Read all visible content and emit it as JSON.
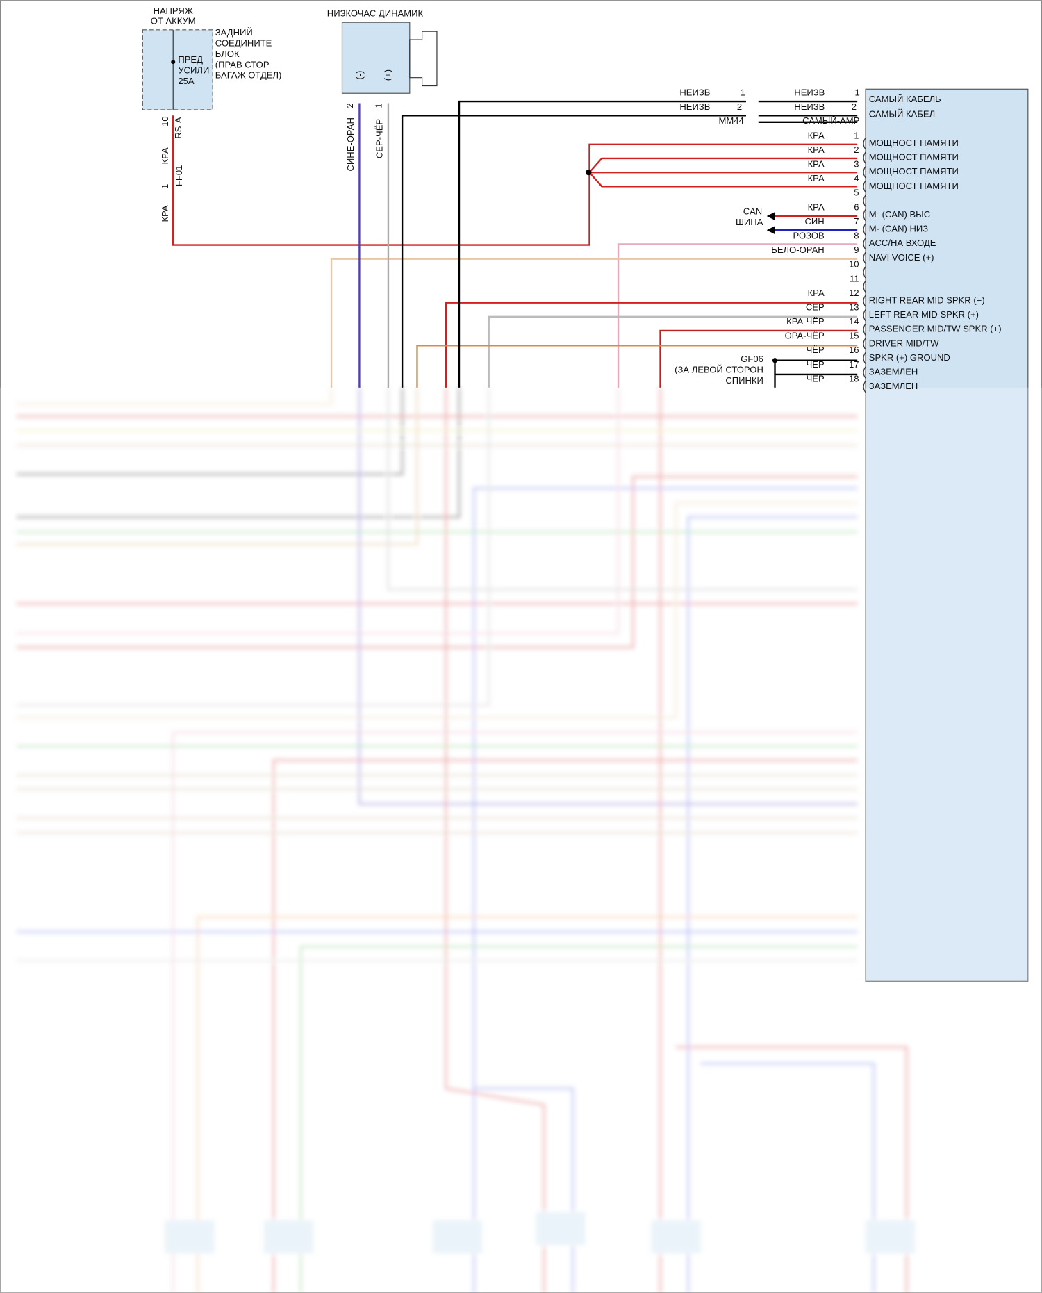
{
  "power": {
    "title": [
      "НАПРЯЖ",
      "ОТ АККУМ"
    ],
    "fuse": [
      "ПРЕД",
      "УСИЛИ",
      "25A"
    ],
    "block": [
      "ЗАДНИЙ",
      "СОЕДИНИТЕ",
      "БЛОК",
      "(ПРАВ СТОР",
      "БАГАЖ ОТДЕЛ)"
    ],
    "pin": "10",
    "connector": "RS-A",
    "wire": "КРА",
    "pin2": "1",
    "connector2": "FF01",
    "wire2": "КРА"
  },
  "subwoofer": {
    "title": "НИЗКОЧАС ДИНАМИК",
    "terminals": [
      "(-)",
      "(+)"
    ],
    "pins": [
      "2",
      "1"
    ],
    "wires": [
      "СИНЕ-ОРАН",
      "СЕР-ЧЁР"
    ]
  },
  "mm44": {
    "left": [
      {
        "wire": "НЕИЗВ",
        "pin": "1"
      },
      {
        "wire": "НЕИЗВ",
        "pin": "2"
      }
    ],
    "name": "MM44",
    "right": [
      {
        "wire": "НЕИЗВ",
        "pin": "1",
        "label": "САМЫЙ КАБЕЛЬ"
      },
      {
        "wire": "НЕИЗВ",
        "pin": "2",
        "label": "САМЫЙ КАБЕЛ"
      }
    ],
    "connector": "САМЫЙ-АМР"
  },
  "can": [
    "CAN",
    "ШИНА"
  ],
  "ground": {
    "name": "GF06",
    "note": [
      "(ЗА ЛЕВОЙ СТОРОН",
      "СПИНКИ"
    ]
  },
  "amp_pins": [
    {
      "pin": "1",
      "wire": "КРА",
      "label": "МОЩНОСТ ПАМЯТИ"
    },
    {
      "pin": "2",
      "wire": "КРА",
      "label": "МОЩНОСТ ПАМЯТИ"
    },
    {
      "pin": "3",
      "wire": "КРА",
      "label": "МОЩНОСТ ПАМЯТИ"
    },
    {
      "pin": "4",
      "wire": "КРА",
      "label": "МОЩНОСТ ПАМЯТИ"
    },
    {
      "pin": "5"
    },
    {
      "pin": "6",
      "wire": "КРА",
      "label": "M- (CAN) ВЫС"
    },
    {
      "pin": "7",
      "wire": "СИН",
      "label": "M- (CAN) НИЗ"
    },
    {
      "pin": "8",
      "wire": "РОЗОВ",
      "label": "ACC/НА ВХОДЕ"
    },
    {
      "pin": "9",
      "wire": "БЕЛО-ОРАН",
      "label": "NAVI VOICE (+)"
    },
    {
      "pin": "10"
    },
    {
      "pin": "11"
    },
    {
      "pin": "12",
      "wire": "КРА",
      "label": "RIGHT REAR MID SPKR (+)"
    },
    {
      "pin": "13",
      "wire": "СЕР",
      "label": "LEFT REAR MID SPKR (+)"
    },
    {
      "pin": "14",
      "wire": "КРА-ЧЁР",
      "label": "PASSENGER MID/TW SPKR (+)"
    },
    {
      "pin": "15",
      "wire": "ОРА-ЧЁР",
      "label": "DRIVER MID/TW"
    },
    {
      "pin": "16",
      "wire": "ЧЁР",
      "label": "SPKR (+) GROUND"
    },
    {
      "pin": "17",
      "wire": "ЧЁР",
      "label": "ЗАЗЕМЛЕН"
    },
    {
      "pin": "18",
      "wire": "ЧЁР",
      "label": "ЗАЗЕМЛЕН"
    }
  ]
}
